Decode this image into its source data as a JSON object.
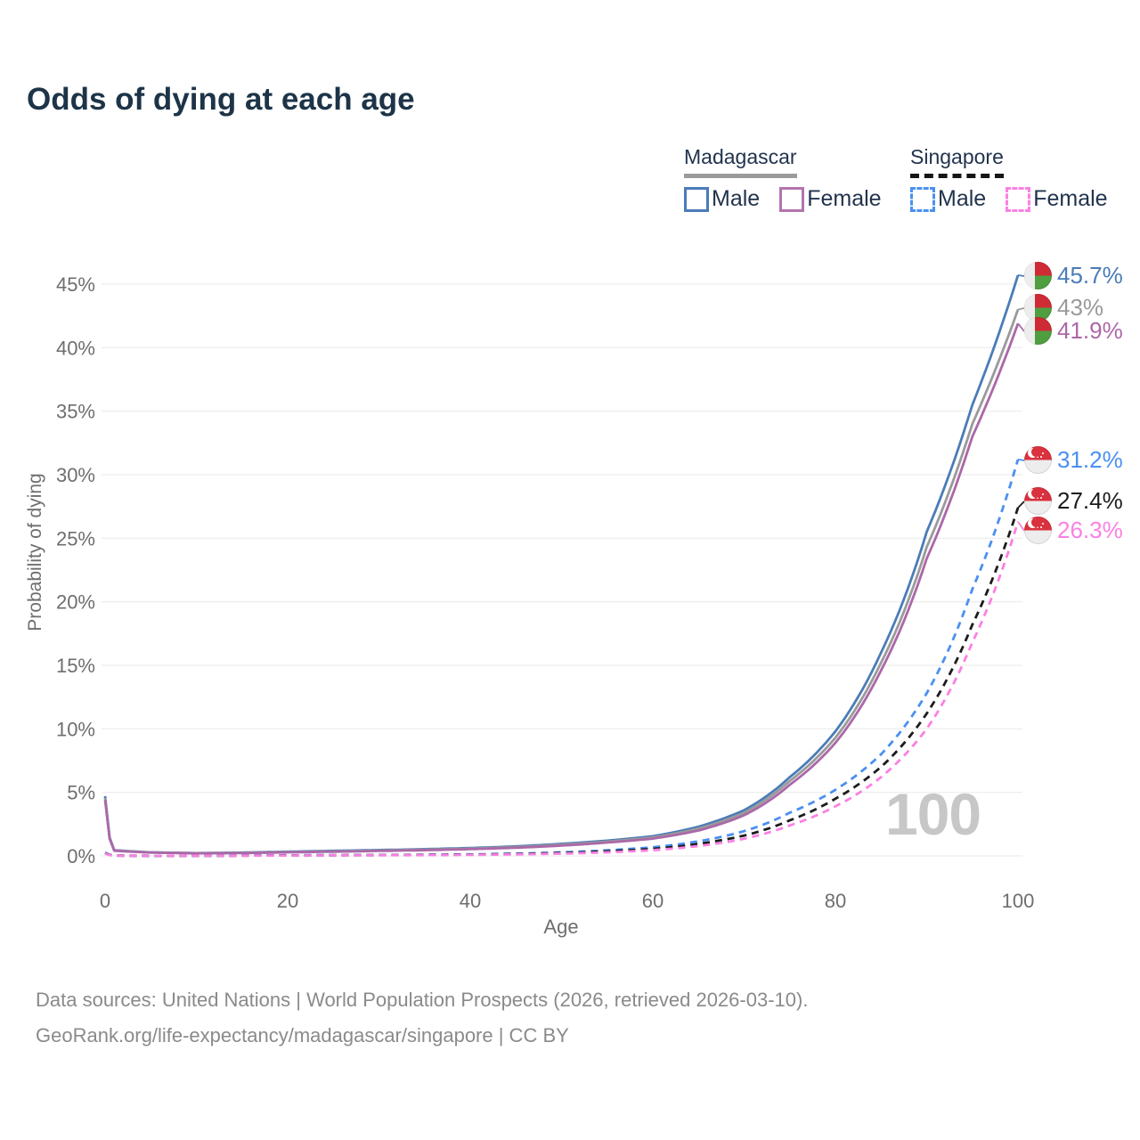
{
  "title": "Odds of dying at each age",
  "legend": {
    "groups": [
      {
        "name": "Madagascar",
        "line_style": "solid",
        "underline_color": "#9b9b9b",
        "items": [
          {
            "label": "Male",
            "color": "#4a7cb8"
          },
          {
            "label": "Female",
            "color": "#b274ae"
          }
        ]
      },
      {
        "name": "Singapore",
        "line_style": "dashed",
        "underline_color": "#161616",
        "items": [
          {
            "label": "Male",
            "color": "#4a90f0"
          },
          {
            "label": "Female",
            "color": "#fb80e3"
          }
        ]
      }
    ]
  },
  "watermark": "100",
  "footer": {
    "line1": "Data sources: United Nations | World Population Prospects (2026, retrieved 2026-03-10).",
    "line2": "GeoRank.org/life-expectancy/madagascar/singapore | CC BY"
  },
  "chart_data": {
    "type": "line",
    "title": "Odds of dying at each age",
    "xlabel": "Age",
    "ylabel": "Probability of dying",
    "xlim": [
      0,
      100
    ],
    "ylim": [
      0,
      45
    ],
    "xticks": [
      0,
      20,
      40,
      60,
      80,
      100
    ],
    "yticks": [
      0,
      5,
      10,
      15,
      20,
      25,
      30,
      35,
      40,
      45
    ],
    "ytick_suffix": "%",
    "grid": true,
    "legend_position": "top-right",
    "x": [
      0,
      1,
      5,
      10,
      15,
      20,
      25,
      30,
      35,
      40,
      45,
      50,
      55,
      60,
      65,
      70,
      75,
      80,
      85,
      90,
      95,
      100
    ],
    "series": [
      {
        "name": "Madagascar Male",
        "country": "Madagascar",
        "sex": "Male",
        "flag": "madagascar",
        "color": "#4a7cb8",
        "line_style": "solid",
        "end_label": "45.7%",
        "values": [
          4.7,
          0.45,
          0.28,
          0.22,
          0.26,
          0.33,
          0.4,
          0.46,
          0.53,
          0.62,
          0.75,
          0.95,
          1.2,
          1.55,
          2.3,
          3.6,
          6.2,
          9.8,
          16.0,
          25.5,
          35.5,
          45.7
        ]
      },
      {
        "name": "Madagascar",
        "country": "Madagascar",
        "sex": "Both",
        "flag": "madagascar",
        "color": "#9a9a9a",
        "line_style": "solid",
        "end_label": "43%",
        "values": [
          4.55,
          0.43,
          0.27,
          0.21,
          0.24,
          0.3,
          0.36,
          0.42,
          0.49,
          0.57,
          0.69,
          0.88,
          1.12,
          1.45,
          2.15,
          3.4,
          5.9,
          9.3,
          15.2,
          24.3,
          34.0,
          43.0
        ]
      },
      {
        "name": "Madagascar Female",
        "country": "Madagascar",
        "sex": "Female",
        "flag": "madagascar",
        "color": "#ab68a8",
        "line_style": "solid",
        "end_label": "41.9%",
        "values": [
          4.4,
          0.41,
          0.26,
          0.2,
          0.22,
          0.28,
          0.33,
          0.39,
          0.45,
          0.53,
          0.64,
          0.81,
          1.05,
          1.36,
          2.0,
          3.2,
          5.6,
          8.9,
          14.6,
          23.4,
          33.0,
          41.9
        ]
      },
      {
        "name": "Singapore Male",
        "country": "Singapore",
        "sex": "Male",
        "flag": "singapore",
        "color": "#4a90f0",
        "line_style": "dashed",
        "end_label": "31.2%",
        "values": [
          0.25,
          0.03,
          0.01,
          0.01,
          0.03,
          0.05,
          0.06,
          0.07,
          0.09,
          0.12,
          0.18,
          0.28,
          0.44,
          0.68,
          1.15,
          1.95,
          3.4,
          5.2,
          8.0,
          12.8,
          21.0,
          31.2
        ]
      },
      {
        "name": "Singapore",
        "country": "Singapore",
        "sex": "Both",
        "flag": "singapore",
        "color": "#1c1c1c",
        "line_style": "dashed",
        "end_label": "27.4%",
        "values": [
          0.22,
          0.025,
          0.01,
          0.01,
          0.02,
          0.04,
          0.05,
          0.06,
          0.08,
          0.1,
          0.15,
          0.23,
          0.36,
          0.55,
          0.95,
          1.6,
          2.8,
          4.5,
          7.0,
          11.2,
          18.2,
          27.4
        ]
      },
      {
        "name": "Singapore Female",
        "country": "Singapore",
        "sex": "Female",
        "flag": "singapore",
        "color": "#fb80e3",
        "line_style": "dashed",
        "end_label": "26.3%",
        "values": [
          0.19,
          0.02,
          0.01,
          0.01,
          0.02,
          0.03,
          0.04,
          0.05,
          0.06,
          0.08,
          0.12,
          0.18,
          0.28,
          0.45,
          0.78,
          1.35,
          2.4,
          3.9,
          6.2,
          10.0,
          16.8,
          26.3
        ]
      }
    ]
  }
}
